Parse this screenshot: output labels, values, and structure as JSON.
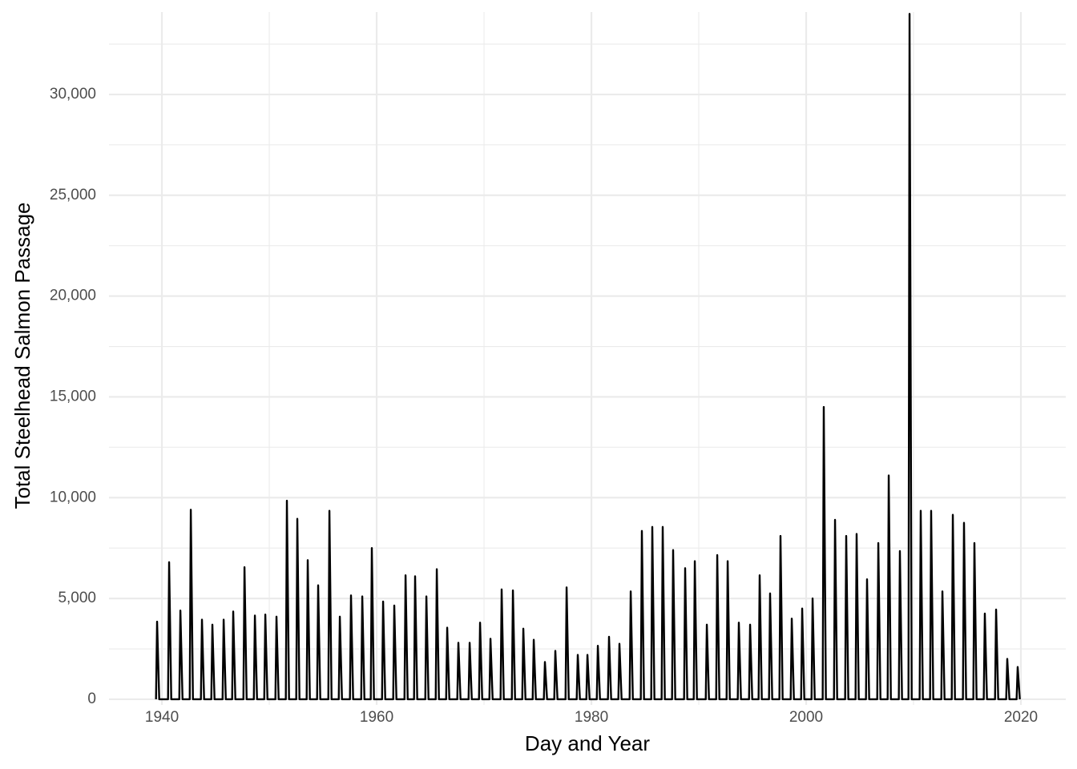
{
  "chart_data": {
    "type": "line",
    "x_label": "Day and Year",
    "y_label": "Total Steelhead Salmon Passage",
    "color": "#000000",
    "grid": true,
    "xlim": [
      1935.07,
      2024.18
    ],
    "ylim": [
      -280,
      34090
    ],
    "xticks": [
      1940,
      1960,
      1980,
      2000,
      2020
    ],
    "x_minor_ticks": [
      1950,
      1970,
      1990,
      2010
    ],
    "yticks": [
      0,
      {
        "value": 5000,
        "label": "5,000"
      },
      {
        "value": 10000,
        "label": "10,000"
      },
      {
        "value": 15000,
        "label": "15,000"
      },
      {
        "value": 20000,
        "label": "20,000"
      },
      {
        "value": 25000,
        "label": "25,000"
      },
      {
        "value": 30000,
        "label": "30,000"
      }
    ],
    "y_minor_ticks": [
      2500,
      7500,
      12500,
      17500,
      22500,
      27500,
      32500
    ],
    "x": [
      1939.45,
      1939.55,
      1939.75,
      1940.57,
      1940.67,
      1940.87,
      1941.62,
      1941.72,
      1941.92,
      1942.59,
      1942.69,
      1942.89,
      1943.63,
      1943.73,
      1943.93,
      1944.6,
      1944.7,
      1944.9,
      1945.65,
      1945.75,
      1945.95,
      1946.54,
      1946.64,
      1946.84,
      1947.59,
      1947.69,
      1947.89,
      1948.56,
      1948.66,
      1948.86,
      1949.53,
      1949.63,
      1949.83,
      1950.57,
      1950.67,
      1950.87,
      1951.54,
      1951.64,
      1951.84,
      1952.51,
      1952.61,
      1952.81,
      1953.48,
      1953.58,
      1953.78,
      1954.45,
      1954.55,
      1954.75,
      1955.5,
      1955.6,
      1955.8,
      1956.47,
      1956.57,
      1956.77,
      1957.51,
      1957.61,
      1957.81,
      1958.56,
      1958.66,
      1958.86,
      1959.45,
      1959.55,
      1959.75,
      1960.5,
      1960.6,
      1960.8,
      1961.54,
      1961.64,
      1961.84,
      1962.59,
      1962.69,
      1962.89,
      1963.48,
      1963.58,
      1963.78,
      1964.53,
      1964.63,
      1964.83,
      1965.5,
      1965.6,
      1965.8,
      1966.47,
      1966.57,
      1966.77,
      1967.51,
      1967.61,
      1967.81,
      1968.56,
      1968.66,
      1968.86,
      1969.53,
      1969.63,
      1969.83,
      1970.5,
      1970.6,
      1970.8,
      1971.54,
      1971.64,
      1971.84,
      1972.59,
      1972.69,
      1972.89,
      1973.56,
      1973.66,
      1973.86,
      1974.53,
      1974.63,
      1974.83,
      1975.57,
      1975.67,
      1975.87,
      1976.54,
      1976.64,
      1976.84,
      1977.59,
      1977.69,
      1977.89,
      1978.63,
      1978.73,
      1978.93,
      1979.53,
      1979.63,
      1979.83,
      1980.5,
      1980.6,
      1980.8,
      1981.54,
      1981.64,
      1981.84,
      1982.51,
      1982.61,
      1982.81,
      1983.56,
      1983.66,
      1983.86,
      1984.6,
      1984.7,
      1984.9,
      1985.57,
      1985.67,
      1985.87,
      1986.54,
      1986.64,
      1986.84,
      1987.51,
      1987.61,
      1987.81,
      1988.63,
      1988.73,
      1988.93,
      1989.53,
      1989.63,
      1989.83,
      1990.65,
      1990.75,
      1990.95,
      1991.62,
      1991.72,
      1991.92,
      1992.59,
      1992.69,
      1992.89,
      1993.63,
      1993.73,
      1993.93,
      1994.68,
      1994.78,
      1994.98,
      1995.57,
      1995.67,
      1995.87,
      1996.54,
      1996.64,
      1996.84,
      1997.51,
      1997.61,
      1997.81,
      1998.56,
      1998.66,
      1998.86,
      1999.53,
      1999.63,
      1999.83,
      2000.5,
      2000.6,
      2000.8,
      2001.54,
      2001.64,
      2001.84,
      2002.59,
      2002.69,
      2002.89,
      2003.63,
      2003.73,
      2003.93,
      2004.6,
      2004.7,
      2004.9,
      2005.57,
      2005.67,
      2005.87,
      2006.62,
      2006.72,
      2006.92,
      2007.59,
      2007.69,
      2007.89,
      2008.63,
      2008.73,
      2008.93,
      2009.53,
      2009.63,
      2009.83,
      2010.57,
      2010.67,
      2010.87,
      2011.54,
      2011.64,
      2011.84,
      2012.59,
      2012.69,
      2012.89,
      2013.56,
      2013.66,
      2013.86,
      2014.6,
      2014.7,
      2014.9,
      2015.57,
      2015.67,
      2015.87,
      2016.54,
      2016.64,
      2016.84,
      2017.59,
      2017.69,
      2017.89,
      2018.63,
      2018.73,
      2018.93,
      2019.6,
      2019.7,
      2019.9
    ],
    "values": [
      0,
      3850,
      0,
      0,
      6800,
      0,
      0,
      4400,
      0,
      0,
      9400,
      0,
      0,
      3950,
      0,
      0,
      3700,
      0,
      0,
      3950,
      0,
      0,
      4350,
      0,
      0,
      6550,
      0,
      0,
      4150,
      0,
      0,
      4200,
      0,
      0,
      4100,
      0,
      0,
      9850,
      0,
      0,
      8950,
      0,
      0,
      6900,
      0,
      0,
      5650,
      0,
      0,
      9350,
      0,
      0,
      4100,
      0,
      0,
      5150,
      0,
      0,
      5100,
      0,
      0,
      7500,
      0,
      0,
      4850,
      0,
      0,
      4650,
      0,
      0,
      6150,
      0,
      0,
      6100,
      0,
      0,
      5100,
      0,
      0,
      6450,
      0,
      0,
      3550,
      0,
      0,
      2800,
      0,
      0,
      2800,
      0,
      0,
      3800,
      0,
      0,
      3000,
      0,
      0,
      5450,
      0,
      0,
      5400,
      0,
      0,
      3500,
      0,
      0,
      2950,
      0,
      0,
      1850,
      0,
      0,
      2400,
      0,
      0,
      5550,
      0,
      0,
      2200,
      0,
      0,
      2200,
      0,
      0,
      2650,
      0,
      0,
      3100,
      0,
      0,
      2750,
      0,
      0,
      5350,
      0,
      0,
      8350,
      0,
      0,
      8550,
      0,
      0,
      8550,
      0,
      0,
      7400,
      0,
      0,
      6500,
      0,
      0,
      6850,
      0,
      0,
      3700,
      0,
      0,
      7150,
      0,
      0,
      6850,
      0,
      0,
      3800,
      0,
      0,
      3700,
      0,
      0,
      6150,
      0,
      0,
      5250,
      0,
      0,
      8100,
      0,
      0,
      4000,
      0,
      0,
      4500,
      0,
      0,
      5000,
      0,
      0,
      14500,
      0,
      0,
      8900,
      0,
      0,
      8100,
      0,
      0,
      8200,
      0,
      0,
      5950,
      0,
      0,
      7750,
      0,
      0,
      11100,
      0,
      0,
      7350,
      0,
      0,
      34000,
      0,
      0,
      9350,
      0,
      0,
      9350,
      0,
      0,
      5350,
      0,
      0,
      9150,
      0,
      0,
      8750,
      0,
      0,
      7750,
      0,
      0,
      4250,
      0,
      0,
      4450,
      0,
      0,
      2000,
      0,
      0,
      1600,
      0
    ]
  }
}
